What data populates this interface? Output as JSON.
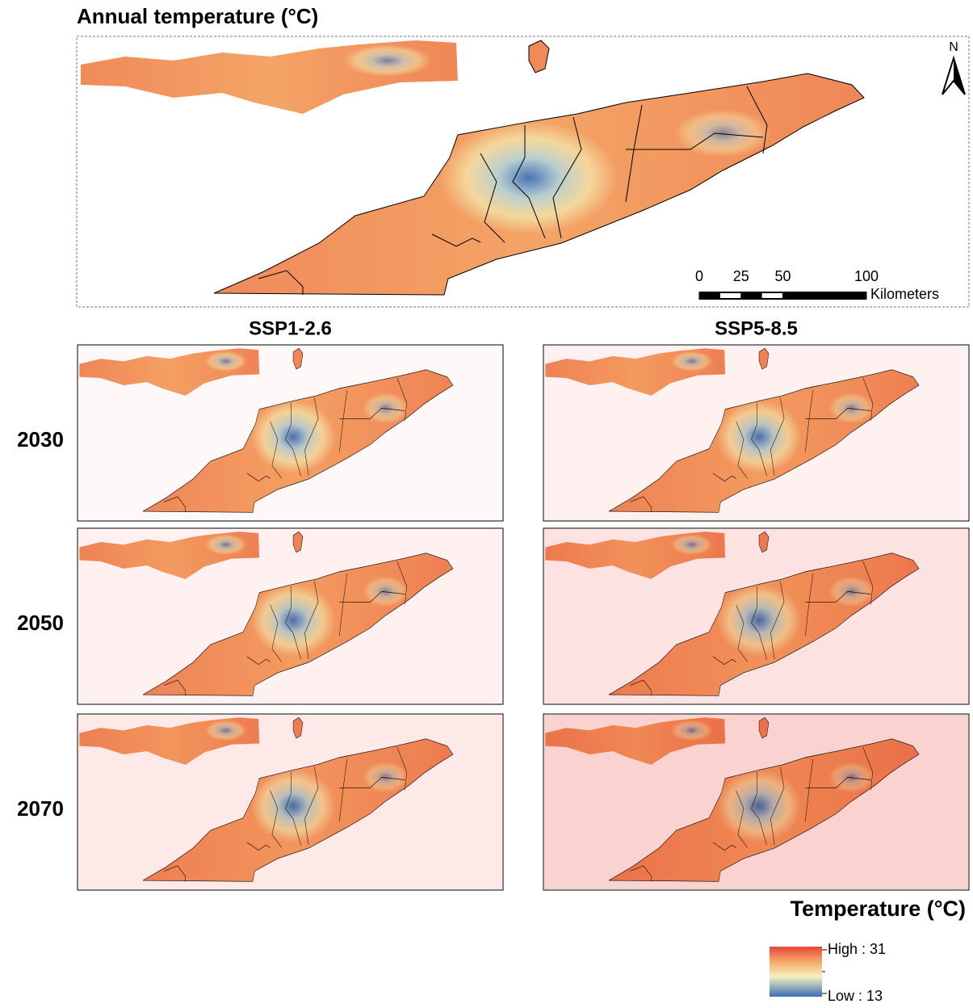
{
  "title": "Annual temperature (°C)",
  "north": "N",
  "scale": {
    "ticks": [
      0,
      25,
      50,
      100
    ],
    "unit": "Kilometers"
  },
  "columns": [
    "SSP1-2.6",
    "SSP5-8.5"
  ],
  "rows": [
    "2030",
    "2050",
    "2070"
  ],
  "legend": {
    "title": "Temperature (°C)",
    "high": "High : 31",
    "low": "Low : 13"
  }
}
